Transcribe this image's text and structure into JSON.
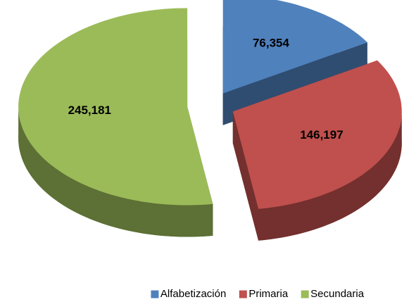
{
  "chart_data": {
    "type": "pie3d",
    "categories": [
      "Alfabetización",
      "Primaria",
      "Secundaria"
    ],
    "values": [
      76354,
      146197,
      245181
    ],
    "value_labels": [
      "76,354",
      "146,197",
      "245,181"
    ],
    "colors": [
      "#4f81bd",
      "#c0504d",
      "#9bbb59"
    ],
    "legend": "bottom"
  }
}
